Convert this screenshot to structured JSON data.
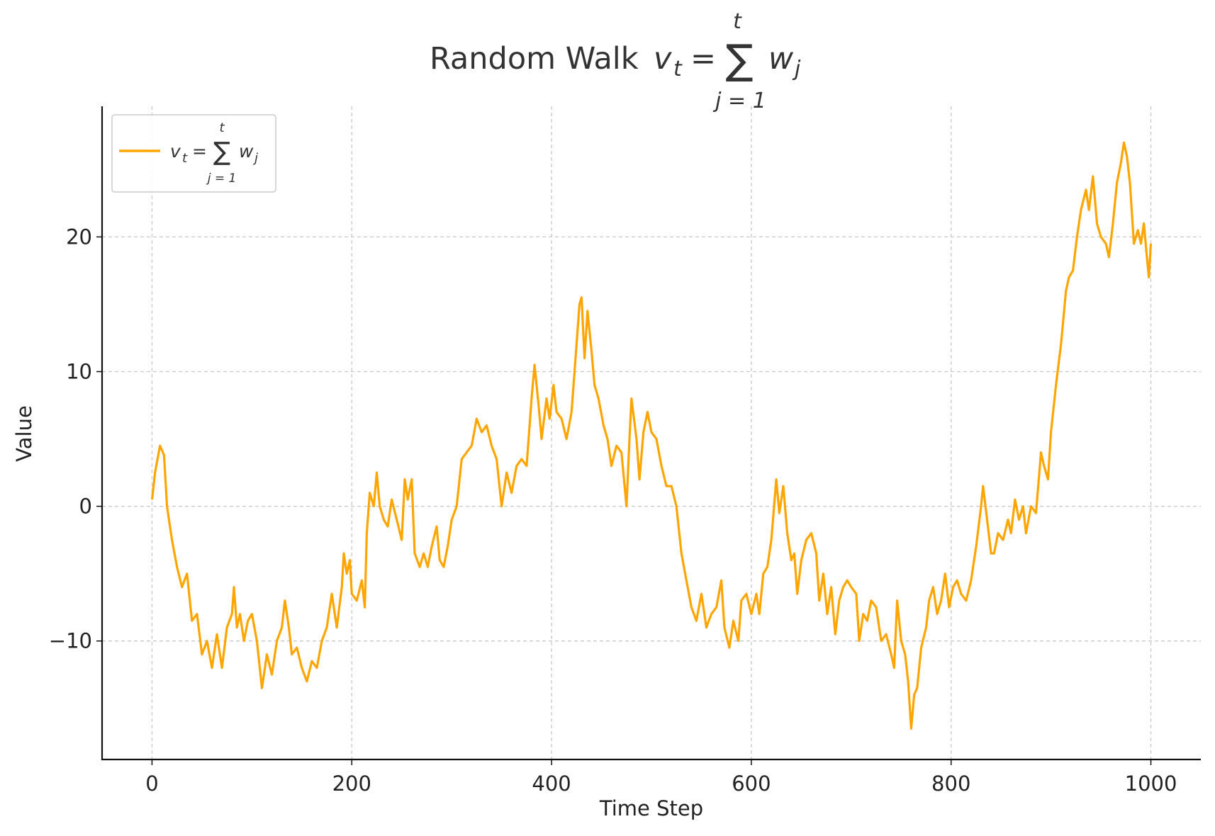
{
  "chart_data": {
    "type": "line",
    "title": {
      "prefix": "Random Walk",
      "var": "v",
      "var_sub": "t",
      "equals": "=",
      "sum": "∑",
      "sum_upper": "t",
      "sum_lower": "j = 1",
      "term": "w",
      "term_sub": "j"
    },
    "xlabel": "Time Step",
    "ylabel": "Value",
    "xlim": [
      -50,
      1050
    ],
    "ylim": [
      -18.8,
      29.7
    ],
    "xticks": [
      0,
      200,
      400,
      600,
      800,
      1000
    ],
    "xtick_labels": [
      "0",
      "200",
      "400",
      "600",
      "800",
      "1000"
    ],
    "yticks": [
      -10,
      0,
      10,
      20
    ],
    "ytick_labels": [
      "−10",
      "0",
      "10",
      "20"
    ],
    "grid": true,
    "legend_placement": "top-left",
    "series": [
      {
        "name": "v_t = ∑_{j=1}^{t} w_j",
        "color": "#FFA500",
        "x": [
          0,
          3,
          8,
          12,
          15,
          20,
          25,
          30,
          35,
          40,
          45,
          50,
          55,
          60,
          65,
          70,
          75,
          80,
          82,
          85,
          88,
          92,
          96,
          100,
          105,
          110,
          115,
          120,
          125,
          130,
          133,
          137,
          140,
          145,
          150,
          155,
          160,
          165,
          170,
          175,
          180,
          185,
          190,
          192,
          195,
          198,
          200,
          205,
          210,
          213,
          215,
          218,
          222,
          225,
          228,
          232,
          236,
          240,
          245,
          250,
          253,
          256,
          260,
          263,
          268,
          272,
          276,
          280,
          285,
          288,
          292,
          296,
          300,
          305,
          310,
          315,
          320,
          325,
          330,
          335,
          340,
          345,
          350,
          355,
          360,
          365,
          370,
          375,
          380,
          383,
          387,
          390,
          395,
          398,
          402,
          405,
          410,
          415,
          420,
          425,
          428,
          430,
          433,
          436,
          440,
          443,
          447,
          452,
          456,
          460,
          465,
          470,
          475,
          478,
          480,
          485,
          488,
          492,
          496,
          500,
          505,
          510,
          515,
          520,
          525,
          530,
          535,
          540,
          545,
          550,
          555,
          560,
          565,
          570,
          573,
          578,
          582,
          587,
          590,
          595,
          600,
          605,
          608,
          612,
          616,
          620,
          625,
          628,
          632,
          636,
          640,
          643,
          646,
          650,
          655,
          660,
          665,
          668,
          672,
          676,
          680,
          684,
          688,
          692,
          696,
          700,
          705,
          708,
          712,
          716,
          720,
          725,
          730,
          735,
          740,
          743,
          746,
          750,
          754,
          757,
          760,
          763,
          766,
          770,
          775,
          778,
          782,
          786,
          790,
          794,
          798,
          802,
          806,
          810,
          815,
          820,
          825,
          830,
          832,
          836,
          840,
          843,
          847,
          852,
          857,
          860,
          864,
          868,
          872,
          875,
          880,
          885,
          890,
          893,
          897,
          900,
          905,
          910,
          915,
          918,
          922,
          926,
          930,
          935,
          938,
          942,
          946,
          950,
          955,
          958,
          962,
          966,
          970,
          973,
          976,
          979,
          983,
          987,
          990,
          993,
          996,
          998,
          1000
        ],
        "values": [
          0.5,
          2.5,
          4.5,
          3.8,
          0,
          -2.5,
          -4.5,
          -6,
          -5,
          -8.5,
          -8,
          -11,
          -10,
          -12,
          -9.5,
          -12,
          -9,
          -8,
          -6,
          -9,
          -8,
          -10,
          -8.5,
          -8,
          -10,
          -13.5,
          -11,
          -12.5,
          -10,
          -9,
          -7,
          -9,
          -11,
          -10.5,
          -12,
          -13,
          -11.5,
          -12,
          -10,
          -9,
          -6.5,
          -9,
          -6,
          -3.5,
          -5,
          -4,
          -6.5,
          -7,
          -5.5,
          -7.5,
          -2,
          1,
          0,
          2.5,
          0,
          -1,
          -1.5,
          0.5,
          -1,
          -2.5,
          2,
          0.5,
          2,
          -3.5,
          -4.5,
          -3.5,
          -4.5,
          -3,
          -1.5,
          -4,
          -4.5,
          -3,
          -1,
          0,
          3.5,
          4,
          4.5,
          6.5,
          5.5,
          6,
          4.5,
          3.5,
          0,
          2.5,
          1,
          3,
          3.5,
          3,
          8,
          10.5,
          7.5,
          5,
          8,
          6.5,
          9,
          7,
          6.5,
          5,
          7,
          12,
          15,
          15.5,
          11,
          14.5,
          11.5,
          9,
          8,
          6,
          5,
          3,
          4.5,
          4,
          0,
          5,
          8,
          5,
          2,
          5.5,
          7,
          5.5,
          5,
          3,
          1.5,
          1.5,
          0,
          -3.5,
          -5.5,
          -7.5,
          -8.5,
          -6.5,
          -9,
          -8,
          -7.5,
          -5.5,
          -9,
          -10.5,
          -8.5,
          -10,
          -7,
          -6.5,
          -8,
          -6.5,
          -8,
          -5,
          -4.5,
          -2.5,
          2,
          -0.5,
          1.5,
          -2,
          -4,
          -3.5,
          -6.5,
          -4,
          -2.5,
          -2,
          -3.5,
          -7,
          -5,
          -8,
          -6,
          -9.5,
          -7,
          -6,
          -5.5,
          -6,
          -6.5,
          -10,
          -8,
          -8.5,
          -7,
          -7.5,
          -10,
          -9.5,
          -11,
          -12,
          -7,
          -10,
          -11,
          -13,
          -16.5,
          -14,
          -13.5,
          -10.5,
          -9,
          -7,
          -6,
          -8,
          -7,
          -5,
          -7.5,
          -6,
          -5.5,
          -6.5,
          -7,
          -5.5,
          -3,
          0,
          1.5,
          -1,
          -3.5,
          -3.5,
          -2,
          -2.5,
          -1,
          -2,
          0.5,
          -1,
          0,
          -2,
          0,
          -0.5,
          4,
          3,
          2,
          5.5,
          9,
          12,
          16,
          17,
          17.5,
          20,
          22,
          23.5,
          22,
          24.5,
          21,
          20,
          19.5,
          18.5,
          21,
          24,
          25.5,
          27,
          26,
          24,
          19.5,
          20.5,
          19.5,
          21,
          18.5,
          17,
          19.5
        ]
      }
    ],
    "legend": {
      "var": "v",
      "var_sub": "t",
      "equals": "=",
      "sum": "∑",
      "sum_upper": "t",
      "sum_lower": "j = 1",
      "term": "w",
      "term_sub": "j"
    }
  }
}
